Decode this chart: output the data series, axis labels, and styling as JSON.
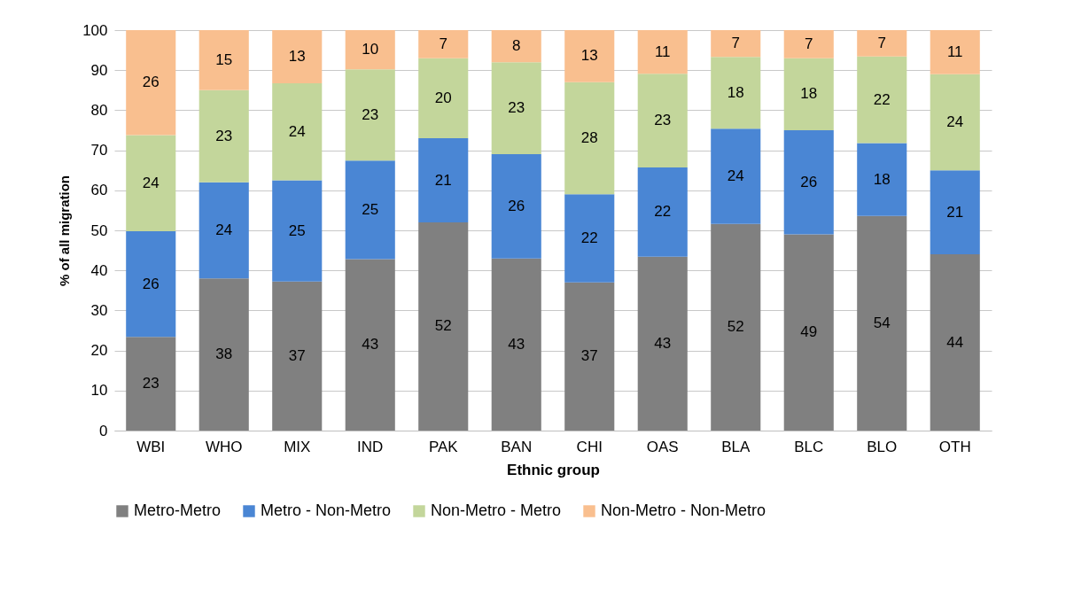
{
  "chart_data": {
    "type": "bar",
    "stacked": true,
    "xlabel": "Ethnic group",
    "ylabel": "% of all migration",
    "categories": [
      "WBI",
      "WHO",
      "MIX",
      "IND",
      "PAK",
      "BAN",
      "CHI",
      "OAS",
      "BLA",
      "BLC",
      "BLO",
      "OTH"
    ],
    "series": [
      {
        "name": "Metro-Metro",
        "color": "#808080",
        "values": [
          23.4,
          38,
          37.2,
          42.8,
          52,
          43,
          37,
          43.4,
          51.6,
          49,
          53.6,
          44
        ],
        "value_labels": [
          "23",
          "38",
          "37",
          "43",
          "52",
          "43",
          "37",
          "43",
          "52",
          "49",
          "54",
          "44"
        ]
      },
      {
        "name": "Metro - Non-Metro",
        "color": "#4a86d4",
        "values": [
          26.4,
          24,
          25.3,
          24.6,
          21,
          26,
          22,
          22.3,
          23.8,
          26,
          18.2,
          21
        ],
        "value_labels": [
          "26",
          "24",
          "25",
          "25",
          "21",
          "26",
          "22",
          "22",
          "24",
          "26",
          "18",
          "21"
        ]
      },
      {
        "name": "Non-Metro - Metro",
        "color": "#c3d69b",
        "values": [
          24.0,
          23,
          24.2,
          22.8,
          20,
          23,
          28,
          23.4,
          17.9,
          18,
          21.6,
          24
        ],
        "value_labels": [
          "24",
          "23",
          "24",
          "23",
          "20",
          "23",
          "28",
          "23",
          "18",
          "18",
          "22",
          "24"
        ]
      },
      {
        "name": "Non-Metro - Non-Metro",
        "color": "#f9bf8f",
        "values": [
          26.2,
          15,
          13.3,
          9.8,
          7,
          8,
          13,
          10.9,
          6.7,
          7,
          6.6,
          11
        ],
        "value_labels": [
          "26",
          "15",
          "13",
          "10",
          "7",
          "8",
          "13",
          "11",
          "7",
          "7",
          "7",
          "11"
        ]
      }
    ],
    "ylim": [
      0,
      100
    ],
    "yticks": [
      0,
      10,
      20,
      30,
      40,
      50,
      60,
      70,
      80,
      90,
      100
    ],
    "grid": "y",
    "legend": "bottom"
  }
}
